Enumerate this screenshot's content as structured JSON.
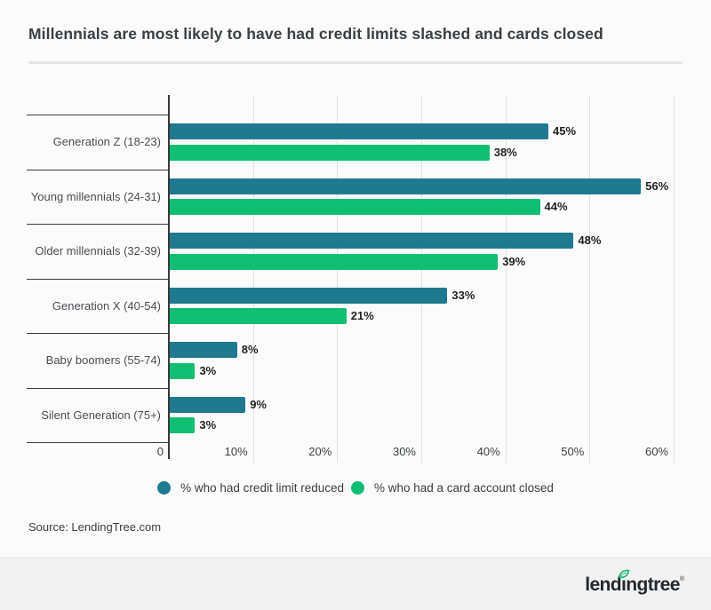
{
  "page": {
    "title": "Millennials are most likely to have had credit limits slashed and cards closed",
    "source": "Source: LendingTree.com",
    "footer_logo": "lendingtree",
    "footer_trademark": "®"
  },
  "colors": {
    "series_teal": "#20798F",
    "series_green": "#0FBE72",
    "footer_background": "#F2F2F2",
    "logo_text": "#23282D",
    "logo_leaf_green": "#21B573",
    "gridline": "#E2E2E2",
    "axis_line": "#37393B"
  },
  "chart_data": {
    "type": "bar",
    "orientation": "horizontal",
    "title": "Millennials are most likely to have had credit limits slashed and cards closed",
    "categories": [
      "Generation Z (18-23)",
      "Young millennials (24-31)",
      "Older millennials (32-39)",
      "Generation X (40-54)",
      "Baby boomers (55-74)",
      "Silent Generation (75+)"
    ],
    "series": [
      {
        "id": "credit-limit-reduced",
        "name": "% who had credit limit reduced",
        "color": "#20798F",
        "values": [
          45,
          56,
          48,
          33,
          8,
          9
        ]
      },
      {
        "id": "card-account-closed",
        "name": "% who had a card account closed",
        "color": "#0FBE72",
        "values": [
          38,
          44,
          39,
          21,
          3,
          3
        ]
      }
    ],
    "value_suffix": "%",
    "x_ticks": [
      "0",
      "10%",
      "20%",
      "30%",
      "40%",
      "50%",
      "60%"
    ],
    "xlim": [
      0,
      60
    ],
    "xlabel": "",
    "ylabel": "",
    "grid": "vertical",
    "legend_position": "bottom"
  }
}
